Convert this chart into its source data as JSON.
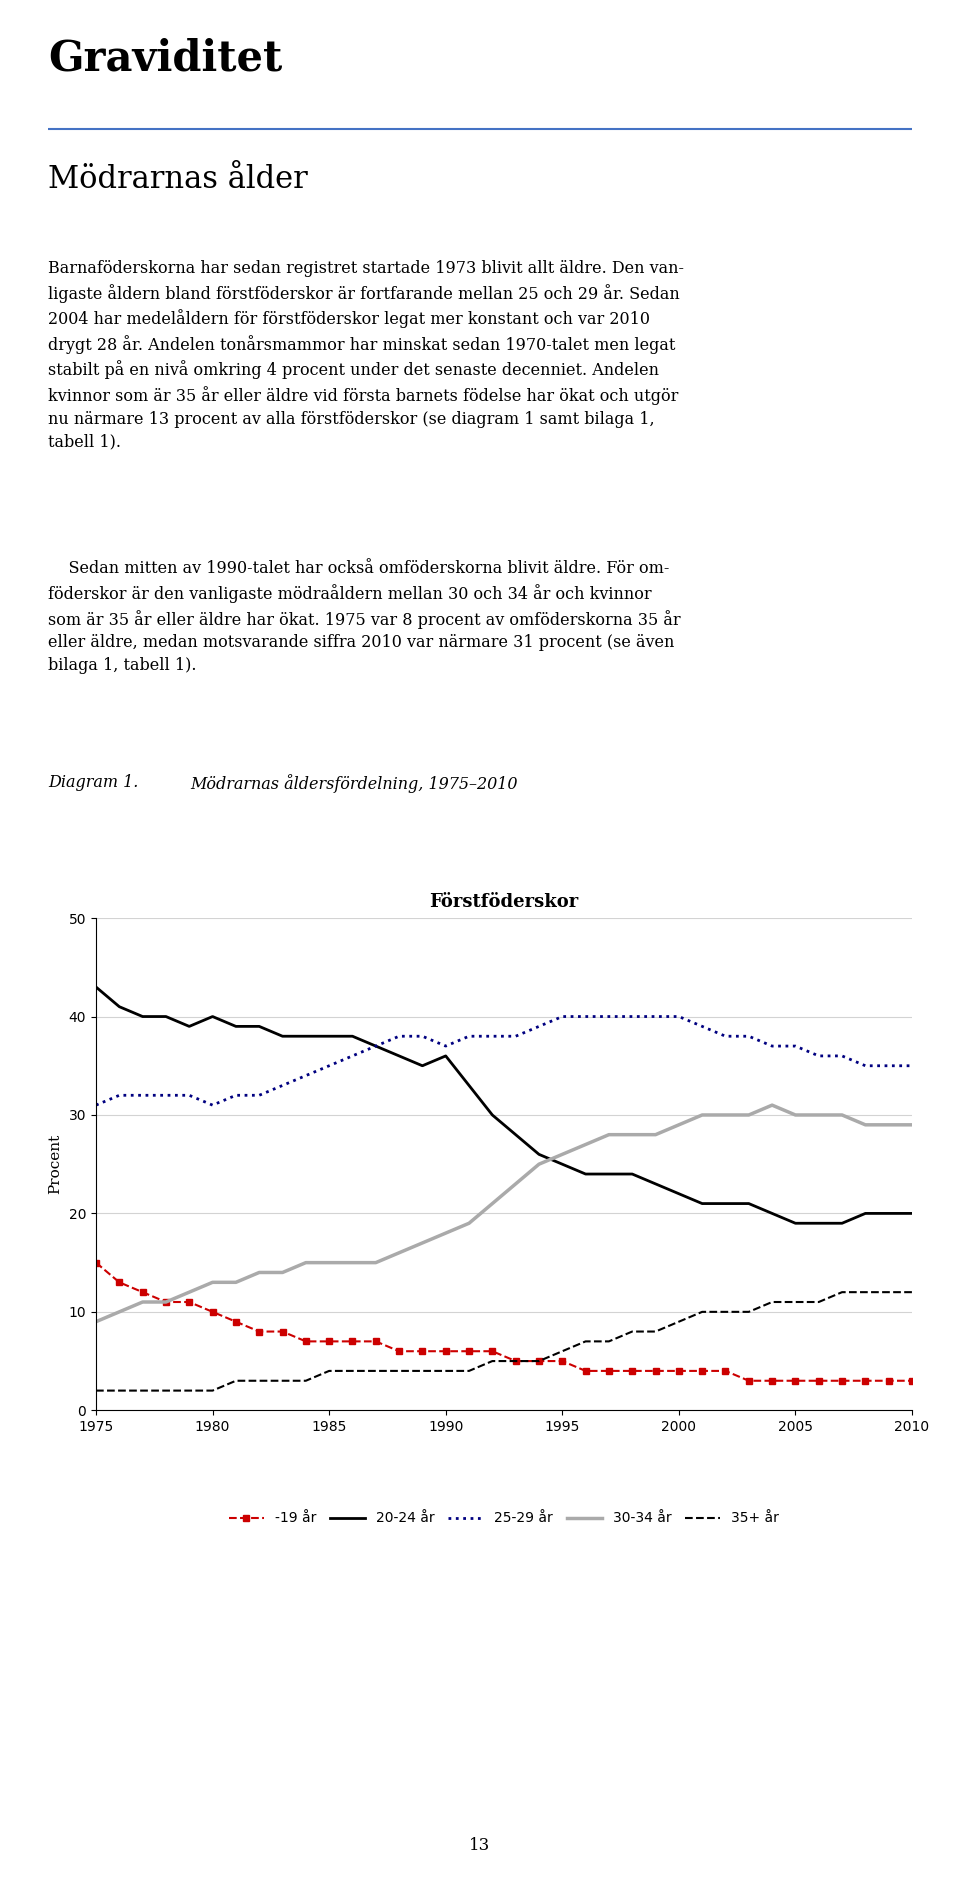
{
  "title_main": "Graviditet",
  "subtitle": "Mödrarnas ålder",
  "diagram_label": "Diagram 1.",
  "diagram_title": "Mödrarnas åldersfördelning, 1975–2010",
  "chart_title": "Förstföderskor",
  "ylabel": "Procent",
  "years": [
    1975,
    1976,
    1977,
    1978,
    1979,
    1980,
    1981,
    1982,
    1983,
    1984,
    1985,
    1986,
    1987,
    1988,
    1989,
    1990,
    1991,
    1992,
    1993,
    1994,
    1995,
    1996,
    1997,
    1998,
    1999,
    2000,
    2001,
    2002,
    2003,
    2004,
    2005,
    2006,
    2007,
    2008,
    2009,
    2010
  ],
  "under19": [
    15,
    13,
    12,
    11,
    11,
    10,
    9,
    8,
    8,
    7,
    7,
    7,
    7,
    6,
    6,
    6,
    6,
    6,
    5,
    5,
    5,
    4,
    4,
    4,
    4,
    4,
    4,
    4,
    3,
    3,
    3,
    3,
    3,
    3,
    3,
    3
  ],
  "age2024": [
    43,
    41,
    40,
    40,
    39,
    40,
    39,
    39,
    38,
    38,
    38,
    38,
    37,
    36,
    35,
    36,
    33,
    30,
    28,
    26,
    25,
    24,
    24,
    24,
    23,
    22,
    21,
    21,
    21,
    20,
    19,
    19,
    19,
    20,
    20,
    20
  ],
  "age2529": [
    31,
    32,
    32,
    32,
    32,
    31,
    32,
    32,
    33,
    34,
    35,
    36,
    37,
    38,
    38,
    37,
    38,
    38,
    38,
    39,
    40,
    40,
    40,
    40,
    40,
    40,
    39,
    38,
    38,
    37,
    37,
    36,
    36,
    35,
    35,
    35
  ],
  "age3034": [
    9,
    10,
    11,
    11,
    12,
    13,
    13,
    14,
    14,
    15,
    15,
    15,
    15,
    16,
    17,
    18,
    19,
    21,
    23,
    25,
    26,
    27,
    28,
    28,
    28,
    29,
    30,
    30,
    30,
    31,
    30,
    30,
    30,
    29,
    29,
    29
  ],
  "age35plus": [
    2,
    2,
    2,
    2,
    2,
    2,
    3,
    3,
    3,
    3,
    4,
    4,
    4,
    4,
    4,
    4,
    4,
    5,
    5,
    5,
    6,
    7,
    7,
    8,
    8,
    9,
    10,
    10,
    10,
    11,
    11,
    11,
    12,
    12,
    12,
    12
  ],
  "ylim": [
    0,
    50
  ],
  "yticks": [
    0,
    10,
    20,
    30,
    40,
    50
  ],
  "xticks": [
    1975,
    1980,
    1985,
    1990,
    1995,
    2000,
    2005,
    2010
  ],
  "color_under19": "#cc0000",
  "color_2024": "#000000",
  "color_2529": "#000080",
  "color_3034": "#aaaaaa",
  "color_35plus": "#000000",
  "page_number": "13",
  "body1_lines": [
    "Barnaföderskorna har sedan registret startade 1973 blivit allt äldre. Den van-",
    "ligaste åldern bland förstföderskor är fortfarande mellan 25 och 29 år. Sedan",
    "2004 har medelåldern för förstföderskor legat mer konstant och var 2010",
    "drygt 28 år. Andelen tonårsmammor har minskat sedan 1970-talet men legat",
    "stabilt på en nivå omkring 4 procent under det senaste decenniet. Andelen",
    "kvinnor som är 35 år eller äldre vid första barnets födelse har ökat och utgör",
    "nu närmare 13 procent av alla förstföderskor (se diagram 1 samt bilaga 1,",
    "tabell 1)."
  ],
  "body2_lines": [
    "    Sedan mitten av 1990-talet har också omföderskorna blivit äldre. För om-",
    "föderskor är den vanligaste mödraåldern mellan 30 och 34 år och kvinnor",
    "som är 35 år eller äldre har ökat. 1975 var 8 procent av omföderskorna 35 år",
    "eller äldre, medan motsvarande siffra 2010 var närmare 31 procent (se även",
    "bilaga 1, tabell 1)."
  ]
}
